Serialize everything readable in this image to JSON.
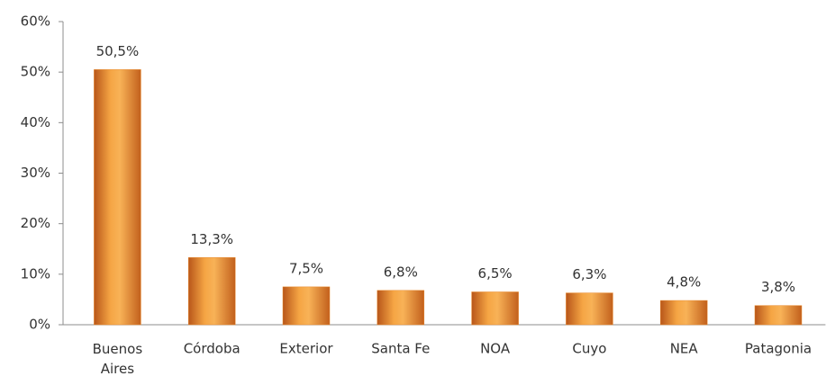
{
  "chart_data": {
    "type": "bar",
    "categories": [
      "Buenos Aires",
      "Córdoba",
      "Exterior",
      "Santa Fe",
      "NOA",
      "Cuyo",
      "NEA",
      "Patagonia"
    ],
    "values": [
      50.5,
      13.3,
      7.5,
      6.8,
      6.5,
      6.3,
      4.8,
      3.8
    ],
    "value_labels": [
      "50,5%",
      "13,3%",
      "7,5%",
      "6,8%",
      "6,5%",
      "6,3%",
      "4,8%",
      "3,8%"
    ],
    "color": "#e8892c",
    "ylim": [
      0,
      60
    ],
    "yticks": [
      {
        "value": 0,
        "label": "0%"
      },
      {
        "value": 10,
        "label": "10%"
      },
      {
        "value": 20,
        "label": "20%"
      },
      {
        "value": 30,
        "label": "30%"
      },
      {
        "value": 40,
        "label": "40%"
      },
      {
        "value": 50,
        "label": "50%"
      },
      {
        "value": 60,
        "label": "60%"
      }
    ],
    "grid": false
  }
}
